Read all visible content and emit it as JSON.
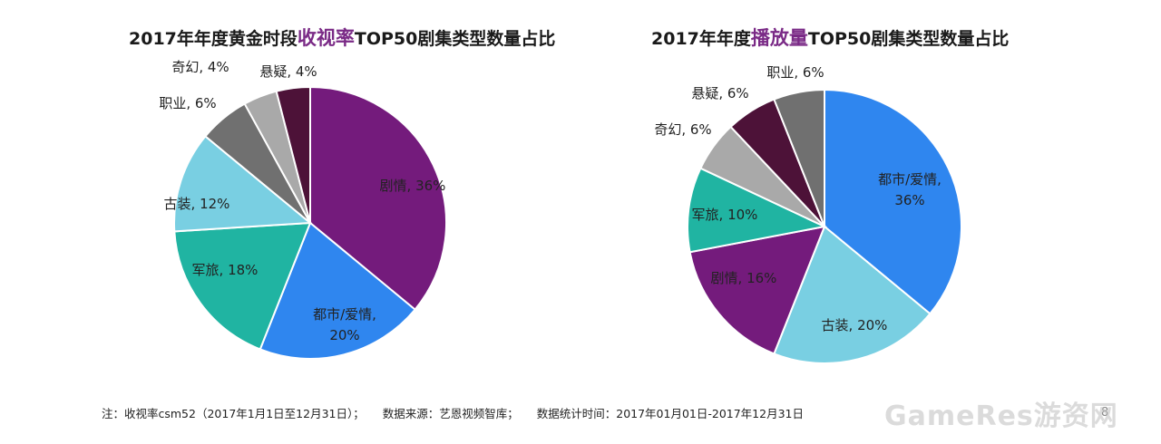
{
  "colors": {
    "highlight": "#7a2a86"
  },
  "chart_data": [
    {
      "type": "pie",
      "title_prefix": "2017年年度黄金时段",
      "title_highlight": "收视率",
      "title_suffix": "TOP50剧集类型数量占比",
      "slices": [
        {
          "label": "剧情",
          "value": 36,
          "label_text": "剧情, 36%",
          "color": "#741b7c"
        },
        {
          "label": "都市/爱情",
          "value": 20,
          "label_text": "都市/爱情,\n20%",
          "color": "#2f86ef"
        },
        {
          "label": "军旅",
          "value": 18,
          "label_text": "军旅, 18%",
          "color": "#20b4a2"
        },
        {
          "label": "古装",
          "value": 12,
          "label_text": "古装, 12%",
          "color": "#79cfe2"
        },
        {
          "label": "职业",
          "value": 6,
          "label_text": "职业, 6%",
          "color": "#707070"
        },
        {
          "label": "奇幻",
          "value": 4,
          "label_text": "奇幻, 4%",
          "color": "#a9a9a9"
        },
        {
          "label": "悬疑",
          "value": 4,
          "label_text": "悬疑, 4%",
          "color": "#4d1238"
        }
      ]
    },
    {
      "type": "pie",
      "title_prefix": "2017年年度",
      "title_highlight": "播放量",
      "title_suffix": "TOP50剧集类型数量占比",
      "slices": [
        {
          "label": "都市/爱情",
          "value": 36,
          "label_text": "都市/爱情,\n36%",
          "color": "#2f86ef"
        },
        {
          "label": "古装",
          "value": 20,
          "label_text": "古装, 20%",
          "color": "#79cfe2"
        },
        {
          "label": "剧情",
          "value": 16,
          "label_text": "剧情, 16%",
          "color": "#741b7c"
        },
        {
          "label": "军旅",
          "value": 10,
          "label_text": "军旅, 10%",
          "color": "#20b4a2"
        },
        {
          "label": "奇幻",
          "value": 6,
          "label_text": "奇幻, 6%",
          "color": "#a9a9a9"
        },
        {
          "label": "悬疑",
          "value": 6,
          "label_text": "悬疑, 6%",
          "color": "#4d1238"
        },
        {
          "label": "职业",
          "value": 6,
          "label_text": "职业, 6%",
          "color": "#707070"
        }
      ]
    }
  ],
  "footnote": {
    "note": "注：收视率csm52（2017年1月1日至12月31日）；",
    "source": "数据来源：艺恩视频智库；",
    "period": "数据统计时间：2017年01月01日-2017年12月31日"
  },
  "page_number": "8",
  "watermark": "GameRes游资网"
}
